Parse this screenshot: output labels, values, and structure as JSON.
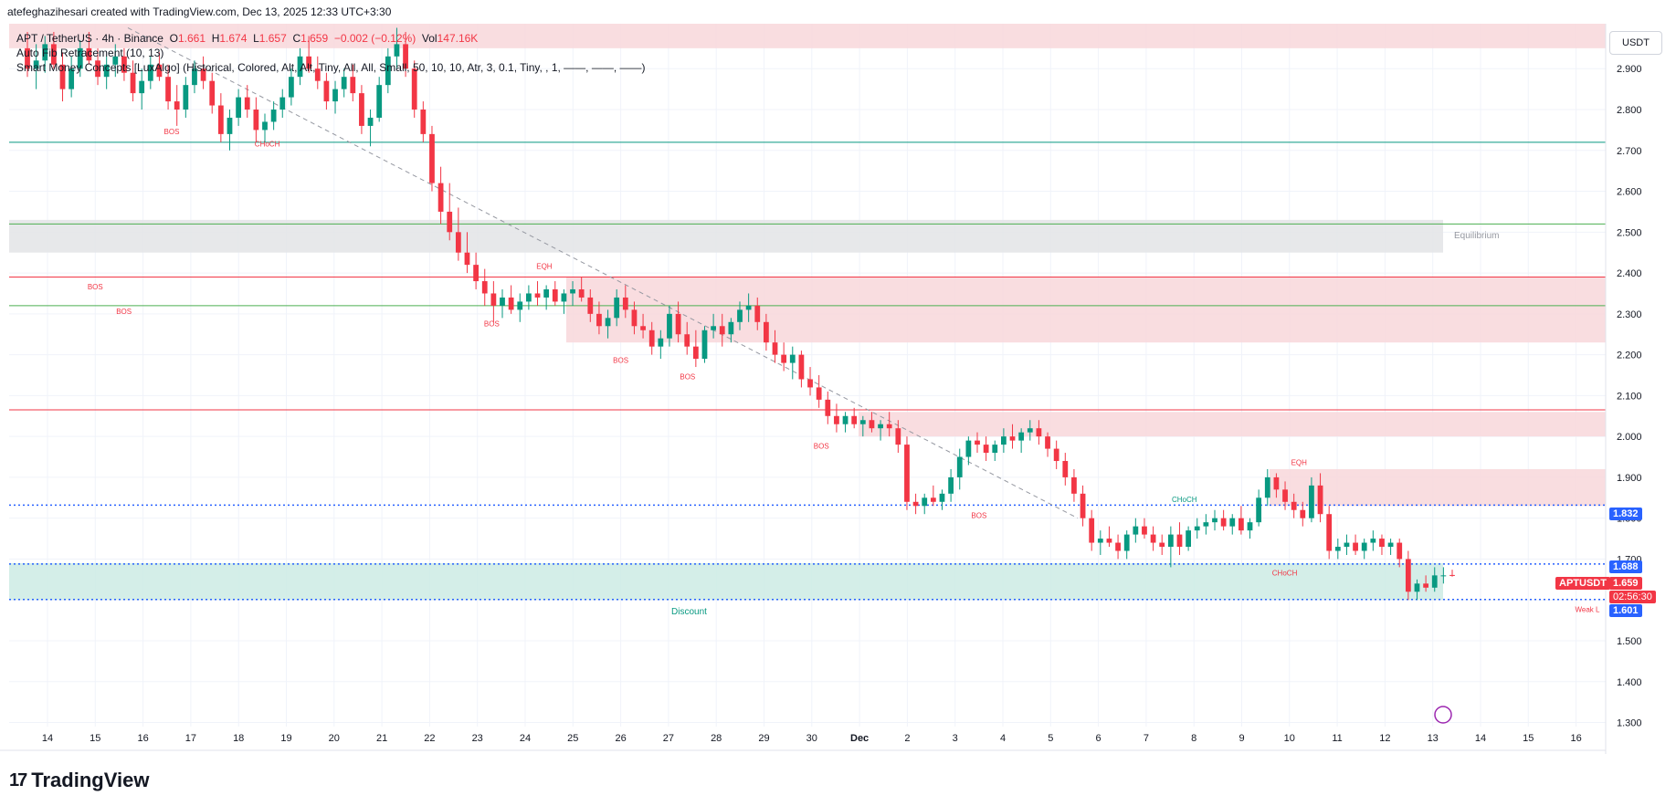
{
  "header": {
    "created_line": "atefeghazihesari created with TradingView.com, Dec 13, 2025 12:33 UTC+3:30"
  },
  "legend": {
    "symbol": "APT / TetherUS · 4h · Binance",
    "o_label": "O",
    "o_value": "1.661",
    "h_label": "H",
    "h_value": "1.674",
    "l_label": "L",
    "l_value": "1.657",
    "c_label": "C",
    "c_value": "1.659",
    "change": "−0.002 (−0.12%)",
    "vol_label": "Vol",
    "vol_value": "147.16K",
    "indicator1": "Auto Fib Retracement (10, 13)",
    "indicator2": "Smart Money Concepts [LuxAlgo] (Historical, Colored, Alt, Alt, Tiny, All, All, Small, 50, 10, 10, Atr, 3, 0.1, Tiny, , 1, ——, ——, ——)"
  },
  "currency": "USDT",
  "price_tags": {
    "level_1832": "1.832",
    "level_1688": "1.688",
    "ticker": "APTUSDT",
    "last": "1.659",
    "countdown": "02:56:30",
    "level_1601": "1.601"
  },
  "footer": {
    "brand": "TradingView"
  },
  "colors": {
    "up": "#089981",
    "down": "#f23645",
    "supply": "#f8d7da",
    "discount": "#cdebe4",
    "equilibrium": "#e3e4e6",
    "fib_blue": "#2962ff"
  },
  "chart_data": {
    "type": "candlestick",
    "y_axis": {
      "ticks": [
        "2.900",
        "2.800",
        "2.700",
        "2.600",
        "2.500",
        "2.400",
        "2.300",
        "2.200",
        "2.100",
        "2.000",
        "1.900",
        "1.800",
        "1.700",
        "1.600",
        "1.500",
        "1.400",
        "1.300"
      ],
      "ylim": [
        1.29,
        3.01
      ]
    },
    "x_axis": {
      "ticks": [
        "14",
        "15",
        "16",
        "17",
        "18",
        "19",
        "20",
        "21",
        "22",
        "23",
        "24",
        "25",
        "26",
        "27",
        "28",
        "29",
        "30",
        "Dec",
        "2",
        "3",
        "4",
        "5",
        "6",
        "7",
        "8",
        "9",
        "10",
        "11",
        "12",
        "13",
        "14",
        "15",
        "16"
      ]
    },
    "zones": [
      {
        "name": "supply-top",
        "y0": 2.95,
        "y1": 3.04,
        "color": "supply"
      },
      {
        "name": "equilibrium",
        "label": "Equilibrium",
        "y0": 2.45,
        "y1": 2.53,
        "color": "equilibrium"
      },
      {
        "name": "supply-2",
        "y0": 2.23,
        "y1": 2.39,
        "color": "supply"
      },
      {
        "name": "supply-3",
        "y0": 2.0,
        "y1": 2.06,
        "color": "supply"
      },
      {
        "name": "supply-4",
        "y0": 1.83,
        "y1": 1.92,
        "color": "supply"
      },
      {
        "name": "discount",
        "label": "Discount",
        "y0": 1.6,
        "y1": 1.69,
        "color": "discount"
      }
    ],
    "labels": [
      {
        "text": "BOS",
        "x": 1.0,
        "y": 2.36
      },
      {
        "text": "BOS",
        "x": 1.6,
        "y": 2.3
      },
      {
        "text": "BOS",
        "x": 2.6,
        "y": 2.74
      },
      {
        "text": "CHoCH",
        "x": 4.6,
        "y": 2.71
      },
      {
        "text": "EQH",
        "x": 10.4,
        "y": 2.41
      },
      {
        "text": "BOS",
        "x": 9.3,
        "y": 2.27
      },
      {
        "text": "BOS",
        "x": 12.0,
        "y": 2.18
      },
      {
        "text": "BOS",
        "x": 13.4,
        "y": 2.14
      },
      {
        "text": "BOS",
        "x": 16.2,
        "y": 1.97
      },
      {
        "text": "BOS",
        "x": 19.5,
        "y": 1.8
      },
      {
        "text": "CHoCH",
        "x": 23.8,
        "y": 1.84
      },
      {
        "text": "EQH",
        "x": 26.2,
        "y": 1.93
      },
      {
        "text": "CHoCH",
        "x": 25.9,
        "y": 1.66
      },
      {
        "text": "Weak L",
        "x": 32.4,
        "y": 1.57
      }
    ],
    "hlines": [
      {
        "y": 2.72,
        "color": "#089981"
      },
      {
        "y": 2.52,
        "color": "#4caf50"
      },
      {
        "y": 2.39,
        "color": "#f23645"
      },
      {
        "y": 2.32,
        "color": "#4caf50"
      },
      {
        "y": 2.065,
        "color": "#f23645"
      },
      {
        "y": 1.832,
        "color": "#2962ff",
        "dotted": true
      },
      {
        "y": 1.688,
        "color": "#2962ff",
        "dotted": true
      },
      {
        "y": 1.601,
        "color": "#2962ff",
        "dotted": true
      }
    ],
    "candles": [
      [
        2.95,
        2.99,
        2.88,
        2.9
      ],
      [
        2.9,
        2.96,
        2.85,
        2.92
      ],
      [
        2.92,
        2.98,
        2.89,
        2.96
      ],
      [
        2.96,
        2.99,
        2.9,
        2.91
      ],
      [
        2.91,
        2.94,
        2.82,
        2.85
      ],
      [
        2.85,
        2.93,
        2.83,
        2.9
      ],
      [
        2.9,
        2.97,
        2.88,
        2.95
      ],
      [
        2.95,
        2.99,
        2.91,
        2.92
      ],
      [
        2.92,
        2.95,
        2.86,
        2.88
      ],
      [
        2.88,
        2.93,
        2.85,
        2.91
      ],
      [
        2.91,
        2.96,
        2.88,
        2.93
      ],
      [
        2.93,
        2.95,
        2.87,
        2.89
      ],
      [
        2.89,
        2.92,
        2.82,
        2.84
      ],
      [
        2.84,
        2.9,
        2.8,
        2.87
      ],
      [
        2.87,
        2.93,
        2.85,
        2.91
      ],
      [
        2.91,
        2.94,
        2.87,
        2.88
      ],
      [
        2.88,
        2.91,
        2.8,
        2.82
      ],
      [
        2.82,
        2.86,
        2.76,
        2.8
      ],
      [
        2.8,
        2.88,
        2.78,
        2.86
      ],
      [
        2.86,
        2.92,
        2.84,
        2.9
      ],
      [
        2.9,
        2.93,
        2.85,
        2.87
      ],
      [
        2.87,
        2.89,
        2.79,
        2.81
      ],
      [
        2.81,
        2.84,
        2.72,
        2.74
      ],
      [
        2.74,
        2.8,
        2.7,
        2.78
      ],
      [
        2.78,
        2.85,
        2.76,
        2.83
      ],
      [
        2.83,
        2.86,
        2.78,
        2.8
      ],
      [
        2.8,
        2.83,
        2.72,
        2.75
      ],
      [
        2.75,
        2.79,
        2.72,
        2.77
      ],
      [
        2.77,
        2.82,
        2.75,
        2.8
      ],
      [
        2.8,
        2.85,
        2.78,
        2.83
      ],
      [
        2.83,
        2.9,
        2.81,
        2.88
      ],
      [
        2.88,
        2.95,
        2.86,
        2.93
      ],
      [
        2.93,
        2.98,
        2.89,
        2.9
      ],
      [
        2.9,
        2.93,
        2.85,
        2.87
      ],
      [
        2.87,
        2.89,
        2.8,
        2.82
      ],
      [
        2.82,
        2.87,
        2.79,
        2.85
      ],
      [
        2.85,
        2.9,
        2.83,
        2.88
      ],
      [
        2.88,
        2.91,
        2.82,
        2.84
      ],
      [
        2.84,
        2.86,
        2.74,
        2.76
      ],
      [
        2.76,
        2.8,
        2.71,
        2.78
      ],
      [
        2.78,
        2.88,
        2.77,
        2.86
      ],
      [
        2.86,
        2.95,
        2.84,
        2.93
      ],
      [
        2.93,
        3.0,
        2.9,
        2.96
      ],
      [
        2.96,
        2.99,
        2.88,
        2.9
      ],
      [
        2.9,
        2.92,
        2.78,
        2.8
      ],
      [
        2.8,
        2.82,
        2.72,
        2.74
      ],
      [
        2.74,
        2.76,
        2.6,
        2.62
      ],
      [
        2.62,
        2.66,
        2.52,
        2.55
      ],
      [
        2.55,
        2.62,
        2.48,
        2.5
      ],
      [
        2.5,
        2.56,
        2.43,
        2.45
      ],
      [
        2.45,
        2.5,
        2.4,
        2.42
      ],
      [
        2.42,
        2.45,
        2.36,
        2.38
      ],
      [
        2.38,
        2.41,
        2.32,
        2.35
      ],
      [
        2.35,
        2.38,
        2.28,
        2.32
      ],
      [
        2.32,
        2.36,
        2.29,
        2.34
      ],
      [
        2.34,
        2.37,
        2.3,
        2.31
      ],
      [
        2.31,
        2.35,
        2.28,
        2.33
      ],
      [
        2.33,
        2.37,
        2.31,
        2.35
      ],
      [
        2.35,
        2.38,
        2.32,
        2.34
      ],
      [
        2.34,
        2.37,
        2.31,
        2.36
      ],
      [
        2.36,
        2.38,
        2.32,
        2.33
      ],
      [
        2.33,
        2.36,
        2.3,
        2.35
      ],
      [
        2.35,
        2.38,
        2.32,
        2.36
      ],
      [
        2.36,
        2.39,
        2.33,
        2.34
      ],
      [
        2.34,
        2.36,
        2.28,
        2.3
      ],
      [
        2.3,
        2.33,
        2.25,
        2.27
      ],
      [
        2.27,
        2.31,
        2.24,
        2.29
      ],
      [
        2.29,
        2.36,
        2.27,
        2.34
      ],
      [
        2.34,
        2.37,
        2.29,
        2.31
      ],
      [
        2.31,
        2.33,
        2.25,
        2.27
      ],
      [
        2.27,
        2.3,
        2.24,
        2.26
      ],
      [
        2.26,
        2.28,
        2.2,
        2.22
      ],
      [
        2.22,
        2.26,
        2.19,
        2.24
      ],
      [
        2.24,
        2.32,
        2.22,
        2.3
      ],
      [
        2.3,
        2.33,
        2.23,
        2.25
      ],
      [
        2.25,
        2.28,
        2.2,
        2.22
      ],
      [
        2.22,
        2.26,
        2.17,
        2.19
      ],
      [
        2.19,
        2.27,
        2.18,
        2.26
      ],
      [
        2.26,
        2.3,
        2.24,
        2.27
      ],
      [
        2.27,
        2.3,
        2.22,
        2.25
      ],
      [
        2.25,
        2.29,
        2.23,
        2.28
      ],
      [
        2.28,
        2.33,
        2.26,
        2.31
      ],
      [
        2.31,
        2.35,
        2.28,
        2.32
      ],
      [
        2.32,
        2.34,
        2.26,
        2.28
      ],
      [
        2.28,
        2.3,
        2.21,
        2.23
      ],
      [
        2.23,
        2.26,
        2.18,
        2.2
      ],
      [
        2.2,
        2.23,
        2.16,
        2.18
      ],
      [
        2.18,
        2.22,
        2.14,
        2.2
      ],
      [
        2.2,
        2.21,
        2.12,
        2.14
      ],
      [
        2.14,
        2.17,
        2.1,
        2.12
      ],
      [
        2.12,
        2.15,
        2.07,
        2.09
      ],
      [
        2.09,
        2.11,
        2.03,
        2.05
      ],
      [
        2.05,
        2.08,
        2.01,
        2.03
      ],
      [
        2.03,
        2.06,
        2.01,
        2.05
      ],
      [
        2.05,
        2.07,
        2.02,
        2.03
      ],
      [
        2.03,
        2.05,
        2.0,
        2.04
      ],
      [
        2.04,
        2.06,
        2.01,
        2.02
      ],
      [
        2.02,
        2.04,
        1.99,
        2.03
      ],
      [
        2.03,
        2.06,
        2.0,
        2.02
      ],
      [
        2.02,
        2.04,
        1.96,
        1.98
      ],
      [
        1.98,
        2.0,
        1.82,
        1.84
      ],
      [
        1.84,
        1.86,
        1.81,
        1.83
      ],
      [
        1.83,
        1.86,
        1.81,
        1.85
      ],
      [
        1.85,
        1.88,
        1.83,
        1.84
      ],
      [
        1.84,
        1.87,
        1.82,
        1.86
      ],
      [
        1.86,
        1.92,
        1.84,
        1.9
      ],
      [
        1.9,
        1.97,
        1.87,
        1.95
      ],
      [
        1.95,
        2.0,
        1.93,
        1.99
      ],
      [
        1.99,
        2.01,
        1.96,
        1.98
      ],
      [
        1.98,
        2.0,
        1.94,
        1.96
      ],
      [
        1.96,
        1.99,
        1.94,
        1.98
      ],
      [
        1.98,
        2.02,
        1.96,
        2.0
      ],
      [
        2.0,
        2.03,
        1.97,
        1.99
      ],
      [
        1.99,
        2.02,
        1.96,
        2.01
      ],
      [
        2.01,
        2.04,
        1.99,
        2.02
      ],
      [
        2.02,
        2.04,
        1.98,
        2.0
      ],
      [
        2.0,
        2.01,
        1.95,
        1.97
      ],
      [
        1.97,
        1.99,
        1.92,
        1.94
      ],
      [
        1.94,
        1.96,
        1.88,
        1.9
      ],
      [
        1.9,
        1.92,
        1.84,
        1.86
      ],
      [
        1.86,
        1.88,
        1.78,
        1.8
      ],
      [
        1.8,
        1.82,
        1.72,
        1.74
      ],
      [
        1.74,
        1.77,
        1.71,
        1.75
      ],
      [
        1.75,
        1.78,
        1.73,
        1.74
      ],
      [
        1.74,
        1.76,
        1.7,
        1.72
      ],
      [
        1.72,
        1.77,
        1.7,
        1.76
      ],
      [
        1.76,
        1.8,
        1.74,
        1.78
      ],
      [
        1.78,
        1.8,
        1.75,
        1.76
      ],
      [
        1.76,
        1.78,
        1.72,
        1.74
      ],
      [
        1.74,
        1.76,
        1.71,
        1.73
      ],
      [
        1.73,
        1.78,
        1.68,
        1.76
      ],
      [
        1.76,
        1.79,
        1.71,
        1.73
      ],
      [
        1.73,
        1.78,
        1.72,
        1.77
      ],
      [
        1.77,
        1.8,
        1.75,
        1.78
      ],
      [
        1.78,
        1.81,
        1.76,
        1.79
      ],
      [
        1.79,
        1.82,
        1.77,
        1.8
      ],
      [
        1.8,
        1.82,
        1.77,
        1.78
      ],
      [
        1.78,
        1.81,
        1.76,
        1.8
      ],
      [
        1.8,
        1.83,
        1.76,
        1.77
      ],
      [
        1.77,
        1.8,
        1.75,
        1.79
      ],
      [
        1.79,
        1.87,
        1.78,
        1.85
      ],
      [
        1.85,
        1.92,
        1.83,
        1.9
      ],
      [
        1.9,
        1.91,
        1.85,
        1.87
      ],
      [
        1.87,
        1.89,
        1.82,
        1.84
      ],
      [
        1.84,
        1.86,
        1.8,
        1.82
      ],
      [
        1.82,
        1.84,
        1.78,
        1.8
      ],
      [
        1.8,
        1.9,
        1.79,
        1.88
      ],
      [
        1.88,
        1.91,
        1.79,
        1.81
      ],
      [
        1.81,
        1.83,
        1.7,
        1.72
      ],
      [
        1.72,
        1.75,
        1.7,
        1.73
      ],
      [
        1.73,
        1.76,
        1.71,
        1.74
      ],
      [
        1.74,
        1.76,
        1.71,
        1.72
      ],
      [
        1.72,
        1.75,
        1.7,
        1.74
      ],
      [
        1.74,
        1.77,
        1.72,
        1.75
      ],
      [
        1.75,
        1.76,
        1.71,
        1.73
      ],
      [
        1.73,
        1.75,
        1.71,
        1.74
      ],
      [
        1.74,
        1.75,
        1.68,
        1.7
      ],
      [
        1.7,
        1.72,
        1.6,
        1.62
      ],
      [
        1.62,
        1.65,
        1.6,
        1.64
      ],
      [
        1.64,
        1.66,
        1.62,
        1.63
      ],
      [
        1.63,
        1.68,
        1.62,
        1.66
      ],
      [
        1.66,
        1.68,
        1.64,
        1.66
      ],
      [
        1.661,
        1.674,
        1.657,
        1.659
      ]
    ]
  }
}
